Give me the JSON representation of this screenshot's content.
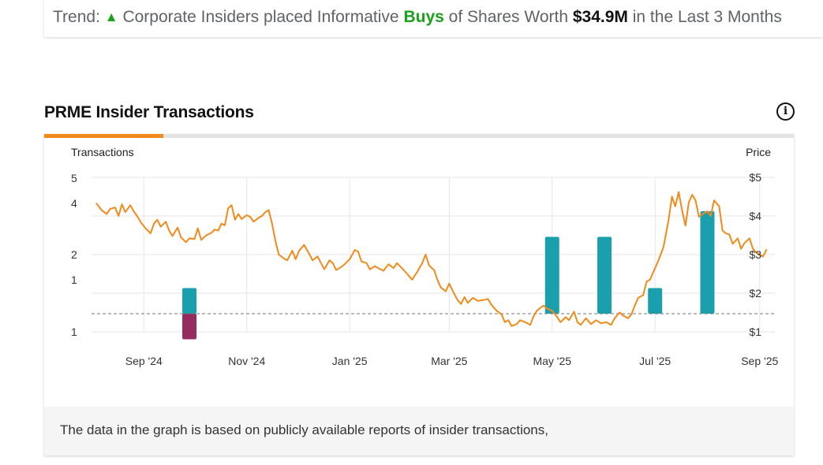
{
  "trend": {
    "prefix": "Trend:",
    "arrow": "▲",
    "text_before": "Corporate Insiders placed Informative",
    "action": "Buys",
    "text_middle": "of Shares Worth",
    "amount": "$34.9M",
    "text_after": "in the Last 3 Months"
  },
  "section": {
    "title": "PRME Insider Transactions",
    "info_glyph": "i"
  },
  "footer": {
    "note": "The data in the graph is based on publicly available reports of insider transactions,"
  },
  "colors": {
    "price_line": "#f28a1b",
    "buy_bar": "#1aa0ad",
    "sell_bar": "#962b5e",
    "gridline": "#e6e6e6",
    "baseline": "#777777",
    "tab_active": "#f28a1b"
  },
  "chart_data": {
    "type": "bar+line",
    "left_axis_title": "Transactions",
    "right_axis_title": "Price",
    "left_tick_labels": [
      "5",
      "4",
      "2",
      "1",
      "1"
    ],
    "right_ticks": [
      {
        "value": 5,
        "label": "$5"
      },
      {
        "value": 4,
        "label": "$4"
      },
      {
        "value": 3,
        "label": "$3"
      },
      {
        "value": 2,
        "label": "$2"
      },
      {
        "value": 1,
        "label": "$1"
      }
    ],
    "ylim_price": [
      1,
      5
    ],
    "x_ticks": [
      {
        "date": "2024-09-01",
        "label": "Sep '24"
      },
      {
        "date": "2024-11-01",
        "label": "Nov '24"
      },
      {
        "date": "2025-01-01",
        "label": "Jan '25"
      },
      {
        "date": "2025-03-01",
        "label": "Mar '25"
      },
      {
        "date": "2025-05-01",
        "label": "May '25"
      },
      {
        "date": "2025-07-01",
        "label": "Jul '25"
      },
      {
        "date": "2025-09-01",
        "label": "Sep '25"
      }
    ],
    "x_range": [
      "2024-08-01",
      "2025-09-10"
    ],
    "buys": [
      {
        "date": "2024-09-28",
        "count": 1
      },
      {
        "date": "2025-05-01",
        "count": 3
      },
      {
        "date": "2025-06-01",
        "count": 3
      },
      {
        "date": "2025-07-01",
        "count": 1
      },
      {
        "date": "2025-08-01",
        "count": 4
      }
    ],
    "sells": [
      {
        "date": "2024-09-28",
        "count": 1
      }
    ],
    "price": [
      [
        "2024-08-04",
        4.32
      ],
      [
        "2024-08-07",
        4.15
      ],
      [
        "2024-08-10",
        4.05
      ],
      [
        "2024-08-12",
        4.18
      ],
      [
        "2024-08-15",
        4.22
      ],
      [
        "2024-08-17",
        4.0
      ],
      [
        "2024-08-19",
        4.3
      ],
      [
        "2024-08-21",
        4.1
      ],
      [
        "2024-08-24",
        4.28
      ],
      [
        "2024-08-26",
        4.12
      ],
      [
        "2024-08-28",
        4.0
      ],
      [
        "2024-08-30",
        3.85
      ],
      [
        "2024-09-02",
        3.68
      ],
      [
        "2024-09-05",
        3.55
      ],
      [
        "2024-09-07",
        3.8
      ],
      [
        "2024-09-09",
        3.9
      ],
      [
        "2024-09-11",
        3.72
      ],
      [
        "2024-09-14",
        3.85
      ],
      [
        "2024-09-16",
        3.62
      ],
      [
        "2024-09-18",
        3.48
      ],
      [
        "2024-09-21",
        3.7
      ],
      [
        "2024-09-23",
        3.45
      ],
      [
        "2024-09-26",
        3.32
      ],
      [
        "2024-09-28",
        3.42
      ],
      [
        "2024-10-01",
        3.4
      ],
      [
        "2024-10-03",
        3.68
      ],
      [
        "2024-10-05",
        3.38
      ],
      [
        "2024-10-08",
        3.5
      ],
      [
        "2024-10-11",
        3.56
      ],
      [
        "2024-10-13",
        3.65
      ],
      [
        "2024-10-15",
        3.62
      ],
      [
        "2024-10-17",
        3.8
      ],
      [
        "2024-10-19",
        3.76
      ],
      [
        "2024-10-21",
        4.2
      ],
      [
        "2024-10-23",
        4.28
      ],
      [
        "2024-10-25",
        3.9
      ],
      [
        "2024-10-27",
        4.05
      ],
      [
        "2024-10-29",
        3.92
      ],
      [
        "2024-11-01",
        4.02
      ],
      [
        "2024-11-03",
        3.98
      ],
      [
        "2024-11-05",
        3.85
      ],
      [
        "2024-11-08",
        3.95
      ],
      [
        "2024-11-10",
        4.0
      ],
      [
        "2024-11-12",
        4.1
      ],
      [
        "2024-11-14",
        4.15
      ],
      [
        "2024-11-16",
        3.8
      ],
      [
        "2024-11-18",
        3.35
      ],
      [
        "2024-11-20",
        3.0
      ],
      [
        "2024-11-23",
        2.9
      ],
      [
        "2024-11-25",
        2.85
      ],
      [
        "2024-11-28",
        3.1
      ],
      [
        "2024-11-30",
        2.88
      ],
      [
        "2024-12-02",
        3.1
      ],
      [
        "2024-12-05",
        3.25
      ],
      [
        "2024-12-08",
        3.02
      ],
      [
        "2024-12-10",
        2.85
      ],
      [
        "2024-12-13",
        2.95
      ],
      [
        "2024-12-15",
        2.78
      ],
      [
        "2024-12-17",
        2.62
      ],
      [
        "2024-12-20",
        2.85
      ],
      [
        "2024-12-22",
        2.78
      ],
      [
        "2024-12-24",
        2.6
      ],
      [
        "2024-12-27",
        2.68
      ],
      [
        "2024-12-29",
        2.75
      ],
      [
        "2025-01-01",
        2.88
      ],
      [
        "2025-01-04",
        3.12
      ],
      [
        "2025-01-06",
        3.08
      ],
      [
        "2025-01-08",
        2.82
      ],
      [
        "2025-01-11",
        2.78
      ],
      [
        "2025-01-13",
        2.62
      ],
      [
        "2025-01-16",
        2.7
      ],
      [
        "2025-01-18",
        2.65
      ],
      [
        "2025-01-21",
        2.58
      ],
      [
        "2025-01-24",
        2.75
      ],
      [
        "2025-01-27",
        2.65
      ],
      [
        "2025-01-29",
        2.78
      ],
      [
        "2025-02-01",
        2.65
      ],
      [
        "2025-02-04",
        2.5
      ],
      [
        "2025-02-07",
        2.35
      ],
      [
        "2025-02-10",
        2.55
      ],
      [
        "2025-02-13",
        2.78
      ],
      [
        "2025-02-15",
        3.0
      ],
      [
        "2025-02-17",
        2.72
      ],
      [
        "2025-02-20",
        2.6
      ],
      [
        "2025-02-22",
        2.35
      ],
      [
        "2025-02-24",
        2.15
      ],
      [
        "2025-02-27",
        2.05
      ],
      [
        "2025-03-01",
        2.25
      ],
      [
        "2025-03-04",
        1.98
      ],
      [
        "2025-03-06",
        1.82
      ],
      [
        "2025-03-08",
        1.72
      ],
      [
        "2025-03-10",
        1.9
      ],
      [
        "2025-03-12",
        1.75
      ],
      [
        "2025-03-15",
        1.88
      ],
      [
        "2025-03-18",
        1.8
      ],
      [
        "2025-03-21",
        1.82
      ],
      [
        "2025-03-24",
        1.85
      ],
      [
        "2025-03-26",
        1.7
      ],
      [
        "2025-03-29",
        1.55
      ],
      [
        "2025-04-01",
        1.45
      ],
      [
        "2025-04-03",
        1.25
      ],
      [
        "2025-04-05",
        1.3
      ],
      [
        "2025-04-07",
        1.15
      ],
      [
        "2025-04-10",
        1.2
      ],
      [
        "2025-04-12",
        1.3
      ],
      [
        "2025-04-15",
        1.25
      ],
      [
        "2025-04-18",
        1.18
      ],
      [
        "2025-04-20",
        1.4
      ],
      [
        "2025-04-22",
        1.55
      ],
      [
        "2025-04-24",
        1.62
      ],
      [
        "2025-04-26",
        1.68
      ],
      [
        "2025-04-28",
        1.6
      ],
      [
        "2025-05-01",
        1.55
      ],
      [
        "2025-05-04",
        1.38
      ],
      [
        "2025-05-06",
        1.25
      ],
      [
        "2025-05-09",
        1.38
      ],
      [
        "2025-05-11",
        1.3
      ],
      [
        "2025-05-14",
        1.52
      ],
      [
        "2025-05-16",
        1.25
      ],
      [
        "2025-05-18",
        1.18
      ],
      [
        "2025-05-21",
        1.35
      ],
      [
        "2025-05-24",
        1.2
      ],
      [
        "2025-05-27",
        1.3
      ],
      [
        "2025-05-30",
        1.22
      ],
      [
        "2025-06-02",
        1.25
      ],
      [
        "2025-06-05",
        1.18
      ],
      [
        "2025-06-07",
        1.35
      ],
      [
        "2025-06-10",
        1.5
      ],
      [
        "2025-06-12",
        1.42
      ],
      [
        "2025-06-15",
        1.35
      ],
      [
        "2025-06-17",
        1.45
      ],
      [
        "2025-06-19",
        1.68
      ],
      [
        "2025-06-21",
        1.88
      ],
      [
        "2025-06-24",
        1.95
      ],
      [
        "2025-06-26",
        2.3
      ],
      [
        "2025-06-28",
        2.35
      ],
      [
        "2025-06-30",
        2.55
      ],
      [
        "2025-07-03",
        2.85
      ],
      [
        "2025-07-06",
        3.2
      ],
      [
        "2025-07-09",
        3.9
      ],
      [
        "2025-07-11",
        4.5
      ],
      [
        "2025-07-13",
        4.25
      ],
      [
        "2025-07-15",
        4.62
      ],
      [
        "2025-07-17",
        4.15
      ],
      [
        "2025-07-19",
        3.75
      ],
      [
        "2025-07-21",
        4.35
      ],
      [
        "2025-07-23",
        4.55
      ],
      [
        "2025-07-25",
        4.4
      ],
      [
        "2025-07-27",
        3.98
      ],
      [
        "2025-07-29",
        4.05
      ],
      [
        "2025-08-01",
        4.12
      ],
      [
        "2025-08-03",
        4.0
      ],
      [
        "2025-08-05",
        4.4
      ],
      [
        "2025-08-08",
        4.25
      ],
      [
        "2025-08-10",
        3.62
      ],
      [
        "2025-08-12",
        3.55
      ],
      [
        "2025-08-14",
        3.52
      ],
      [
        "2025-08-16",
        3.28
      ],
      [
        "2025-08-19",
        3.42
      ],
      [
        "2025-08-21",
        3.15
      ],
      [
        "2025-08-23",
        3.3
      ],
      [
        "2025-08-26",
        3.42
      ],
      [
        "2025-08-28",
        3.15
      ],
      [
        "2025-08-30",
        3.05
      ],
      [
        "2025-09-01",
        3.0
      ],
      [
        "2025-09-03",
        2.95
      ],
      [
        "2025-09-05",
        3.12
      ]
    ]
  }
}
